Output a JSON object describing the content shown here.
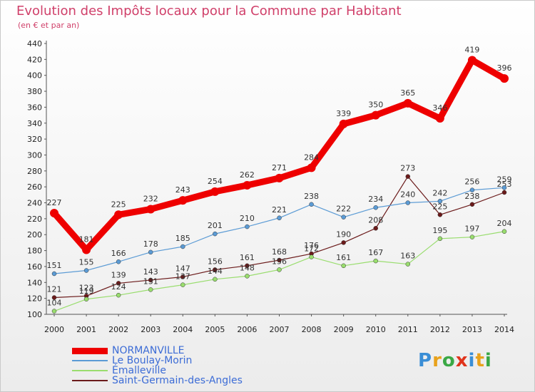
{
  "header": {
    "title": "Evolution des Impôts locaux pour la Commune par Habitant",
    "subtitle": "(en € et par an)"
  },
  "logo": {
    "text": "Proxiti",
    "colors": [
      "#3a8ed6",
      "#e8a21c",
      "#3aa845",
      "#e0341c"
    ]
  },
  "chart_data": {
    "type": "line",
    "title": "Evolution des Impôts locaux pour la Commune par Habitant",
    "subtitle": "(en € et par an)",
    "x": [
      "2000",
      "2001",
      "2002",
      "2003",
      "2004",
      "2005",
      "2006",
      "2007",
      "2008",
      "2009",
      "2010",
      "2011",
      "2012",
      "2013",
      "2014"
    ],
    "ylim": [
      100,
      440
    ],
    "yticks": [
      100,
      120,
      140,
      160,
      180,
      200,
      220,
      240,
      260,
      280,
      300,
      320,
      340,
      360,
      380,
      400,
      420,
      440
    ],
    "grid": false,
    "legend_position": "bottom-left",
    "series": [
      {
        "name": "NORMANVILLE",
        "color": "#ee0000",
        "width": 9,
        "values": [
          227,
          181,
          225,
          232,
          243,
          254,
          262,
          271,
          284,
          339,
          350,
          365,
          346,
          419,
          396
        ],
        "labels": [
          "227",
          "181",
          "225",
          "232",
          "243",
          "254",
          "262",
          "271",
          "284",
          "339",
          "350",
          "365",
          "346",
          "419",
          "396"
        ]
      },
      {
        "name": "Le Boulay-Morin",
        "color": "#5b9bd5",
        "width": 1.2,
        "values": [
          151,
          155,
          166,
          178,
          185,
          201,
          210,
          221,
          238,
          222,
          234,
          240,
          242,
          256,
          259
        ],
        "labels": [
          "151",
          "155",
          "166",
          "178",
          "185",
          "201",
          "210",
          "221",
          "238",
          "222",
          "234",
          "240",
          "242",
          "256",
          "259"
        ]
      },
      {
        "name": "Émalleville",
        "color": "#99dd6e",
        "width": 1.2,
        "values": [
          104,
          119,
          124,
          131,
          137,
          144,
          148,
          156,
          172,
          161,
          167,
          163,
          195,
          197,
          204
        ],
        "labels": [
          "104",
          "119",
          "124",
          "131",
          "137",
          "144",
          "148",
          "156",
          "172",
          "161",
          "167",
          "163",
          "195",
          "197",
          "204"
        ]
      },
      {
        "name": "Saint-Germain-des-Angles",
        "color": "#6b1a1a",
        "width": 1.2,
        "values": [
          121,
          123,
          139,
          143,
          147,
          156,
          161,
          168,
          176,
          190,
          208,
          273,
          225,
          238,
          253
        ],
        "labels": [
          "121",
          "123",
          "139",
          "143",
          "147",
          "156",
          "161",
          "168",
          "176",
          "190",
          "208",
          "273",
          "225",
          "238",
          "253"
        ]
      }
    ]
  }
}
